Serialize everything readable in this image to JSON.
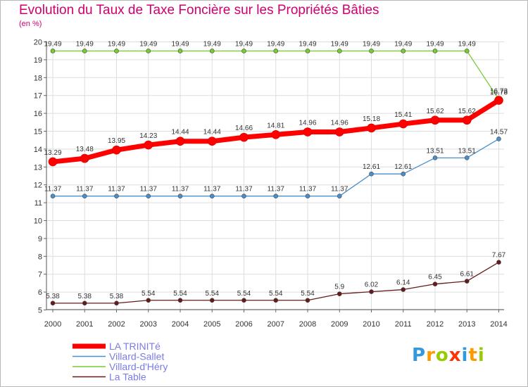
{
  "chart_data": {
    "type": "line",
    "title": "Evolution du Taux de Taxe Foncière sur les Propriétés Bâties",
    "ylabel": "(en %)",
    "xlabel": "",
    "categories": [
      "2000",
      "2001",
      "2002",
      "2003",
      "2004",
      "2005",
      "2006",
      "2007",
      "2008",
      "2009",
      "2010",
      "2011",
      "2012",
      "2013",
      "2014"
    ],
    "ylim": [
      5,
      20
    ],
    "yticks": [
      5,
      6,
      7,
      8,
      9,
      10,
      11,
      12,
      13,
      14,
      15,
      16,
      17,
      18,
      19,
      20
    ],
    "grid": true,
    "series": [
      {
        "name": "LA TRINITé",
        "color": "#ff0000",
        "values": [
          13.29,
          13.48,
          13.95,
          14.23,
          14.44,
          14.44,
          14.66,
          14.81,
          14.96,
          14.96,
          15.18,
          15.41,
          15.62,
          15.62,
          16.73
        ],
        "labels": [
          "13.29",
          "13.48",
          "13.95",
          "14.23",
          "14.44",
          "14.44",
          "14.66",
          "14.81",
          "14.96",
          "14.96",
          "15.18",
          "15.41",
          "15.62",
          "15.62",
          "16.73"
        ]
      },
      {
        "name": "Villard-Sallet",
        "color": "#4a8fcc",
        "values": [
          11.37,
          11.37,
          11.37,
          11.37,
          11.37,
          11.37,
          11.37,
          11.37,
          11.37,
          11.37,
          12.61,
          12.61,
          13.51,
          13.51,
          14.57
        ],
        "labels": [
          "11.37",
          "11.37",
          "11.37",
          "11.37",
          "11.37",
          "11.37",
          "11.37",
          "11.37",
          "11.37",
          "11.37",
          "12.61",
          "12.61",
          "13.51",
          "13.51",
          "14.57"
        ]
      },
      {
        "name": "Villard-d'Héry",
        "color": "#77cc33",
        "values": [
          19.49,
          19.49,
          19.49,
          19.49,
          19.49,
          19.49,
          19.49,
          19.49,
          19.49,
          19.49,
          19.49,
          19.49,
          19.49,
          19.49,
          16.78
        ],
        "labels": [
          "19.49",
          "19.49",
          "19.49",
          "19.49",
          "19.49",
          "19.49",
          "19.49",
          "19.49",
          "19.49",
          "19.49",
          "19.49",
          "19.49",
          "19.49",
          "19.49",
          "16.78"
        ]
      },
      {
        "name": "La Table",
        "color": "#661a1a",
        "values": [
          5.38,
          5.38,
          5.38,
          5.54,
          5.54,
          5.54,
          5.54,
          5.54,
          5.54,
          5.9,
          6.02,
          6.14,
          6.45,
          6.61,
          7.67
        ],
        "labels": [
          "5.38",
          "5.38",
          "5.38",
          "5.54",
          "5.54",
          "5.54",
          "5.54",
          "5.54",
          "5.54",
          "5.9",
          "6.02",
          "6.14",
          "6.45",
          "6.61",
          "7.67"
        ]
      }
    ],
    "legend_position": "bottom-left"
  },
  "brand": {
    "text": "Proxiti",
    "letters": [
      {
        "ch": "P",
        "color": "#3399dd"
      },
      {
        "ch": "r",
        "color": "#ff9900"
      },
      {
        "ch": "o",
        "color": "#99cc00"
      },
      {
        "ch": "x",
        "color": "#ff3300"
      },
      {
        "ch": "i",
        "color": "#3399dd"
      },
      {
        "ch": "t",
        "color": "#ff9900"
      },
      {
        "ch": "i",
        "color": "#99cc00"
      }
    ]
  }
}
